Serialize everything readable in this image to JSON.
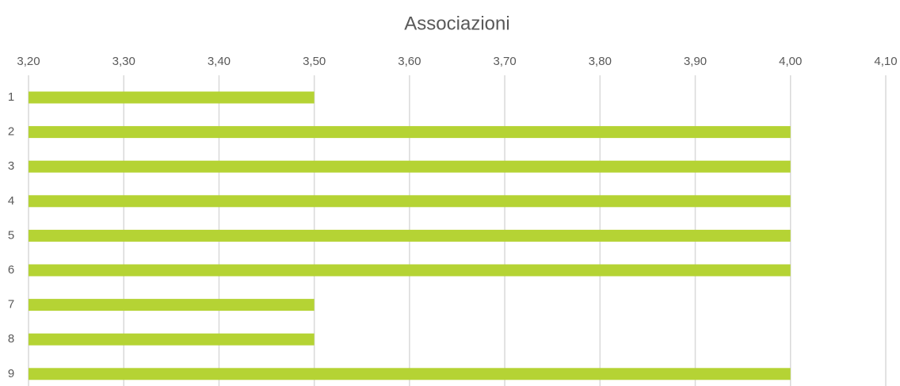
{
  "chart_data": {
    "type": "bar",
    "orientation": "horizontal",
    "title": "Associazioni",
    "categories": [
      "1",
      "2",
      "3",
      "4",
      "5",
      "6",
      "7",
      "8",
      "9"
    ],
    "values": [
      3.5,
      4.0,
      4.0,
      4.0,
      4.0,
      4.0,
      3.5,
      3.5,
      4.0
    ],
    "color": "#b5d334",
    "xlim": [
      3.2,
      4.1
    ],
    "xticks": [
      {
        "value": 3.2,
        "label": "3,20"
      },
      {
        "value": 3.3,
        "label": "3,30"
      },
      {
        "value": 3.4,
        "label": "3,40"
      },
      {
        "value": 3.5,
        "label": "3,50"
      },
      {
        "value": 3.6,
        "label": "3,60"
      },
      {
        "value": 3.7,
        "label": "3,70"
      },
      {
        "value": 3.8,
        "label": "3,80"
      },
      {
        "value": 3.9,
        "label": "3,90"
      },
      {
        "value": 4.0,
        "label": "4,00"
      },
      {
        "value": 4.1,
        "label": "4,10"
      }
    ],
    "grid": true
  }
}
